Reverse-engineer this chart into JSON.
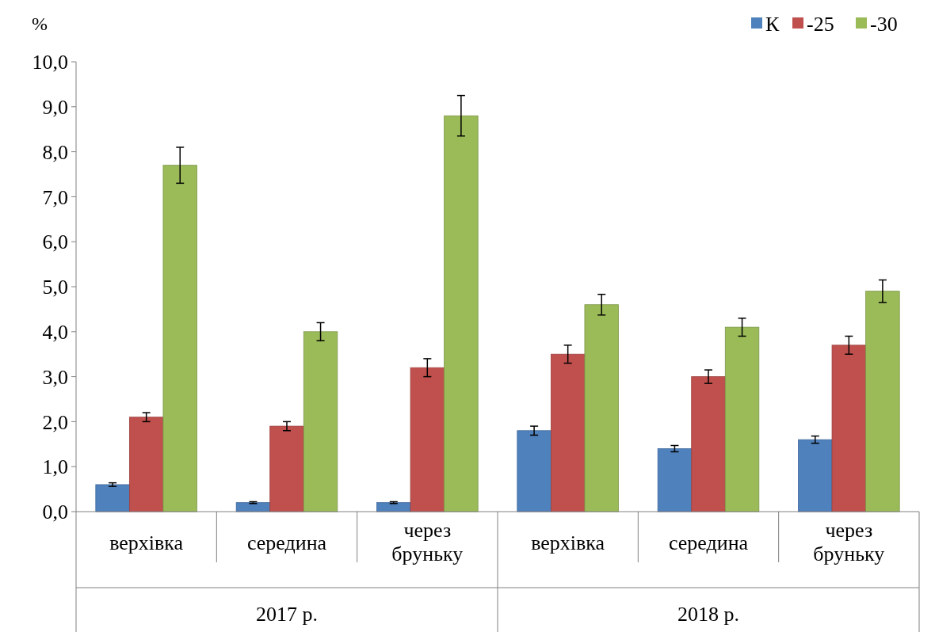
{
  "chart_data": {
    "type": "bar",
    "ylabel": "%",
    "categories": [
      "верхівка",
      "середина",
      "через бруньку",
      "верхівка",
      "середина",
      "через бруньку"
    ],
    "annotations": [
      "2017 р.",
      "2018 р."
    ],
    "series": [
      {
        "name": "К",
        "color": "#4f81bd",
        "values": [
          0.6,
          0.2,
          0.2,
          1.8,
          1.4,
          1.6
        ],
        "errors": [
          0.04,
          0.02,
          0.02,
          0.1,
          0.07,
          0.08
        ]
      },
      {
        "name": "-25",
        "color": "#c0504d",
        "values": [
          2.1,
          1.9,
          3.2,
          3.5,
          3.0,
          3.7
        ],
        "errors": [
          0.1,
          0.1,
          0.2,
          0.2,
          0.15,
          0.2
        ]
      },
      {
        "name": "-30",
        "color": "#9bbb59",
        "values": [
          7.7,
          4.0,
          8.8,
          4.6,
          4.1,
          4.9
        ],
        "errors": [
          0.4,
          0.2,
          0.45,
          0.23,
          0.2,
          0.25
        ]
      }
    ],
    "ylim": [
      0,
      10
    ],
    "yticks": [
      {
        "value": 0,
        "label": "0,0"
      },
      {
        "value": 1,
        "label": "1,0"
      },
      {
        "value": 2,
        "label": "2,0"
      },
      {
        "value": 3,
        "label": "3,0"
      },
      {
        "value": 4,
        "label": "4,0"
      },
      {
        "value": 5,
        "label": "5,0"
      },
      {
        "value": 6,
        "label": "6,0"
      },
      {
        "value": 7,
        "label": "7,0"
      },
      {
        "value": 8,
        "label": "8,0"
      },
      {
        "value": 9,
        "label": "9,0"
      },
      {
        "value": 10,
        "label": "10,0"
      }
    ],
    "grid": false,
    "legend": "top right"
  }
}
